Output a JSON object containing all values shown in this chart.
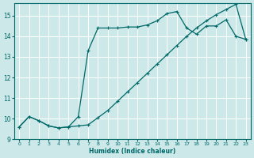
{
  "xlabel": "Humidex (Indice chaleur)",
  "bg_color": "#cce8e8",
  "grid_color": "#ffffff",
  "line_color": "#006868",
  "xlim": [
    -0.5,
    23.5
  ],
  "ylim": [
    9,
    15.6
  ],
  "yticks": [
    9,
    10,
    11,
    12,
    13,
    14,
    15
  ],
  "xticks": [
    0,
    1,
    2,
    3,
    4,
    5,
    6,
    7,
    8,
    9,
    10,
    11,
    12,
    13,
    14,
    15,
    16,
    17,
    18,
    19,
    20,
    21,
    22,
    23
  ],
  "upper_x": [
    0,
    1,
    2,
    3,
    4,
    5,
    6,
    7,
    8,
    9,
    10,
    11,
    12,
    13,
    14,
    15,
    16,
    17,
    18,
    19,
    20,
    21,
    22,
    23
  ],
  "upper_y": [
    9.6,
    10.1,
    9.9,
    9.65,
    9.55,
    9.6,
    10.1,
    13.3,
    14.4,
    14.4,
    14.4,
    14.45,
    14.45,
    14.55,
    14.75,
    15.1,
    15.2,
    14.4,
    14.1,
    14.5,
    14.5,
    14.8,
    14.0,
    13.85
  ],
  "lower_x": [
    0,
    1,
    2,
    3,
    4,
    5,
    6,
    7,
    8,
    9,
    10,
    11,
    12,
    13,
    14,
    15,
    16,
    17,
    18,
    19,
    20,
    21,
    22,
    23
  ],
  "lower_y": [
    9.6,
    10.1,
    9.9,
    9.65,
    9.55,
    9.6,
    9.65,
    9.7,
    10.05,
    10.4,
    10.85,
    11.3,
    11.75,
    12.2,
    12.65,
    13.1,
    13.55,
    14.0,
    14.4,
    14.75,
    15.05,
    15.3,
    15.55,
    13.85
  ]
}
